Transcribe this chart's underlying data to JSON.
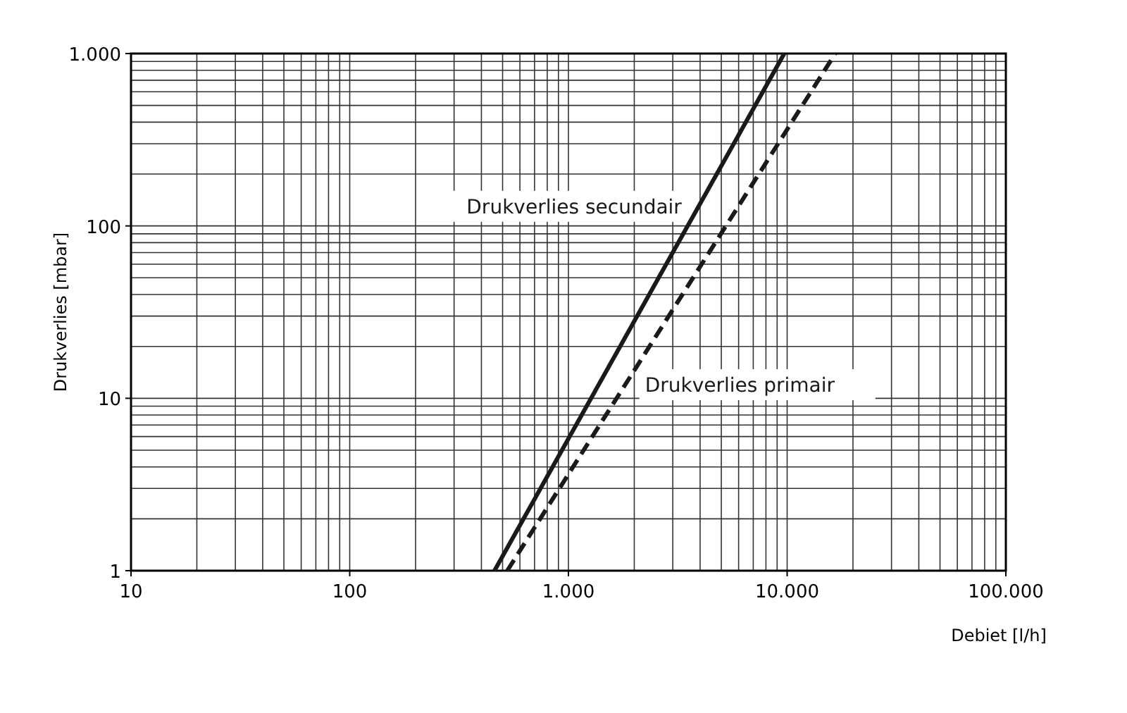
{
  "chart_data": {
    "type": "line",
    "xlabel": "Debiet [l/h]",
    "ylabel": "Drukverlies [mbar]",
    "log": "xy",
    "grid": true,
    "xlim": [
      10,
      100000
    ],
    "xticks": [
      10,
      100,
      {
        "value": 1000,
        "label": "1.000"
      },
      {
        "value": 10000,
        "label": "10.000"
      },
      {
        "value": 100000,
        "label": "100.000"
      }
    ],
    "ylim": [
      1,
      1000
    ],
    "yticks": [
      1,
      10,
      100,
      {
        "value": 1000,
        "label": "1.000"
      }
    ],
    "series": [
      {
        "name": "Drukverlies secundair",
        "color": "#1a1a1a",
        "line_style": "solid",
        "x": [
          459,
          9700
        ],
        "values": [
          1,
          1000
        ]
      },
      {
        "name": "Drukverlies primair",
        "color": "#1a1a1a",
        "line_style": "dashed",
        "x": [
          525,
          16600
        ],
        "values": [
          1,
          1000
        ]
      }
    ]
  }
}
